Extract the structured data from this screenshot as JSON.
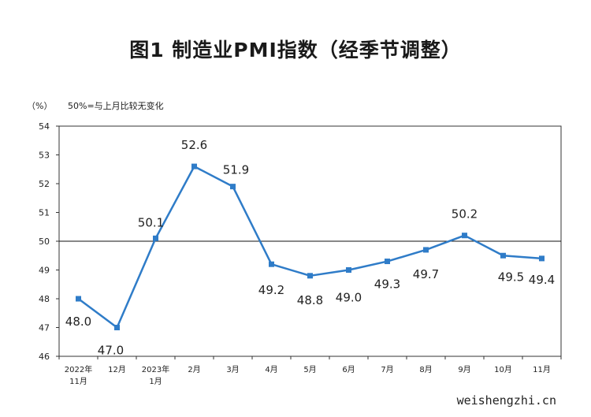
{
  "chart_data": {
    "type": "line",
    "title": "图1 制造业PMI指数（经季节调整）",
    "y_unit_label": "（%）",
    "reference_note": "50%=与上月比较无变化",
    "reference_value": 50,
    "ylim": [
      46,
      54
    ],
    "yticks": [
      46,
      47,
      48,
      49,
      50,
      51,
      52,
      53,
      54
    ],
    "categories": [
      [
        "2022年",
        "11月"
      ],
      [
        "12月"
      ],
      [
        "2023年",
        "1月"
      ],
      [
        "2月"
      ],
      [
        "3月"
      ],
      [
        "4月"
      ],
      [
        "5月"
      ],
      [
        "6月"
      ],
      [
        "7月"
      ],
      [
        "8月"
      ],
      [
        "9月"
      ],
      [
        "10月"
      ],
      [
        "11月"
      ]
    ],
    "values": [
      48.0,
      47.0,
      50.1,
      52.6,
      51.9,
      49.2,
      48.8,
      49.0,
      49.3,
      49.7,
      50.2,
      49.5,
      49.4
    ],
    "data_labels": [
      "48.0",
      "47.0",
      "50.1",
      "52.6",
      "51.9",
      "49.2",
      "48.8",
      "49.0",
      "49.3",
      "49.7",
      "50.2",
      "49.5",
      "49.4"
    ],
    "line_color": "#2f7cc8",
    "grid": false
  },
  "watermark": "weishengzhi.cn"
}
